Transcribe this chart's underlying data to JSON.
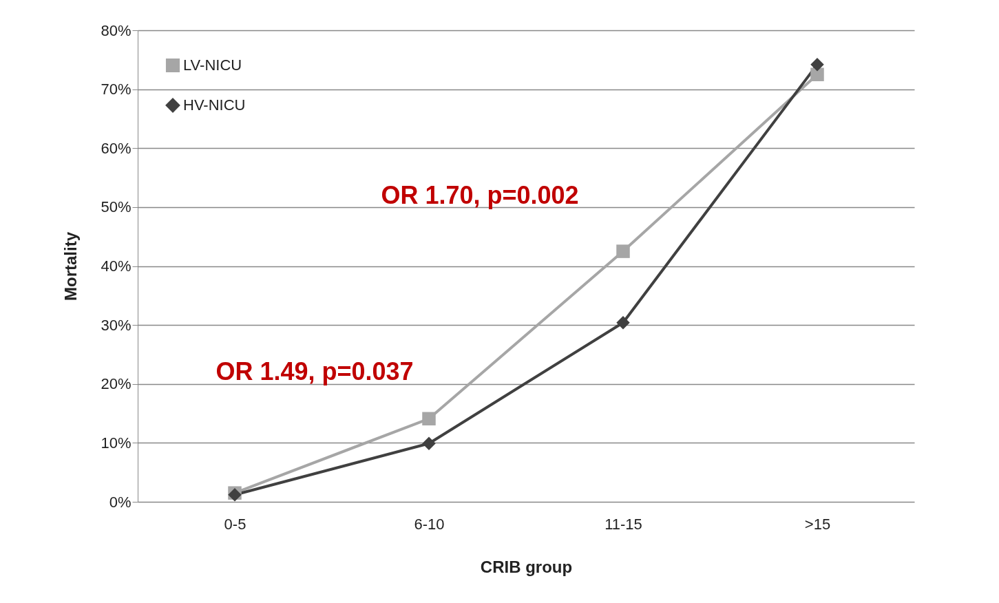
{
  "chart_data": {
    "type": "line",
    "xlabel": "CRIB group",
    "ylabel": "Mortality",
    "categories": [
      "0-5",
      "6-10",
      "11-15",
      ">15"
    ],
    "series": [
      {
        "name": "LV-NICU",
        "color": "#a6a6a6",
        "marker": "square",
        "values": [
          1.5,
          14.1,
          42.5,
          72.5
        ]
      },
      {
        "name": "HV-NICU",
        "color": "#404040",
        "marker": "diamond",
        "values": [
          1.2,
          9.9,
          30.4,
          74.2
        ]
      }
    ],
    "ylim": [
      0,
      80
    ],
    "yticks": [
      {
        "value": 0,
        "label": "0%"
      },
      {
        "value": 10,
        "label": "10%"
      },
      {
        "value": 20,
        "label": "20%"
      },
      {
        "value": 30,
        "label": "30%"
      },
      {
        "value": 40,
        "label": "40%"
      },
      {
        "value": 50,
        "label": "50%"
      },
      {
        "value": 60,
        "label": "60%"
      },
      {
        "value": 70,
        "label": "70%"
      },
      {
        "value": 80,
        "label": "80%"
      }
    ],
    "grid": "y",
    "legend": "top left",
    "annotations": [
      "OR 1.70, p=0.002",
      "OR 1.49, p=0.037"
    ]
  }
}
